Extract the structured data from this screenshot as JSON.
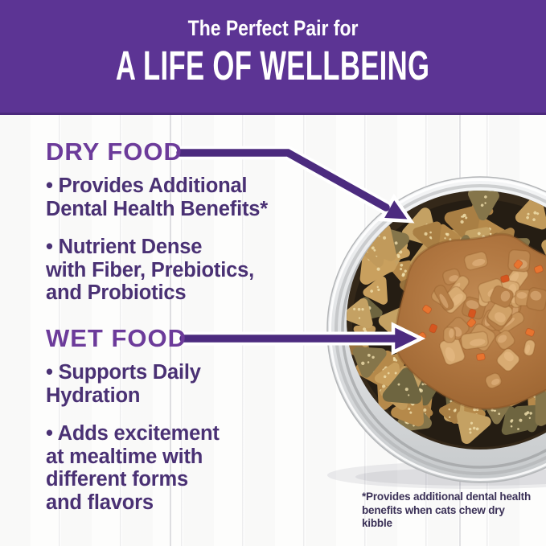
{
  "banner": {
    "eyebrow": "The Perfect Pair for",
    "title": "A LIFE OF WELLBEING"
  },
  "dry_food": {
    "heading": "DRY FOOD",
    "bullets": [
      "• Provides Additional\nDental Health Benefits*",
      "• Nutrient Dense\nwith Fiber, Prebiotics,\nand Probiotics"
    ]
  },
  "wet_food": {
    "heading": "WET FOOD",
    "bullets": [
      "• Supports Daily\nHydration",
      "• Adds excitement\nat mealtime with\ndifferent forms\nand flavors"
    ]
  },
  "footnote": "*Provides additional dental health\nbenefits when cats chew dry kibble",
  "icons": {
    "dry_food_arrow": "angled-arrow-pointing-to-kibble",
    "wet_food_arrow": "straight-arrow-pointing-to-wet-food"
  },
  "colors": {
    "banner-purple": "#5c3494",
    "heading-purple": "#6c3b9a",
    "body-purple": "#4a3174",
    "arrow-purple": "#4c2b7f",
    "footnote-purple": "#3b3157",
    "white": "#ffffff"
  }
}
